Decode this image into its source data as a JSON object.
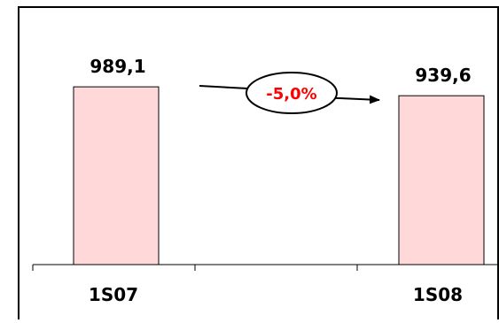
{
  "chart_data": {
    "type": "bar",
    "categories": [
      "1S07",
      "1S08"
    ],
    "values": [
      989.1,
      939.6
    ],
    "value_labels": [
      "989,1",
      "939,6"
    ],
    "annotation": "-5,0%",
    "title": "",
    "xlabel": "",
    "ylabel": "",
    "ylim": [
      0,
      1000
    ],
    "grid": false,
    "legend": "none",
    "colors": {
      "bar_fill": "#ffd9d9",
      "bar_stroke": "#000000",
      "annotation_text": "#ff0000",
      "frame": "#000000",
      "arrow": "#000000"
    }
  }
}
